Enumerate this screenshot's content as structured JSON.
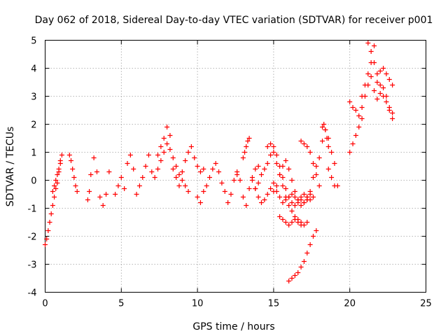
{
  "chart_data": {
    "type": "scatter",
    "title": "Day 062 of 2018, Sidereal Day-to-day VTEC variation (SDTVAR) for receiver p001",
    "xlabel": "GPS time / hours",
    "ylabel": "SDTVAR / TECUs",
    "xlim": [
      0,
      25
    ],
    "ylim": [
      -4,
      5
    ],
    "xticks": [
      0,
      5,
      10,
      15,
      20,
      25
    ],
    "yticks": [
      -4,
      -3,
      -2,
      -1,
      0,
      1,
      2,
      3,
      4,
      5
    ],
    "grid": true,
    "marker": "plus",
    "color": "#ff0000",
    "series": [
      {
        "name": "p001",
        "segments": [
          {
            "x": [
              0.0,
              0.1,
              0.2,
              0.3,
              0.4,
              0.5,
              0.6,
              0.7,
              0.8,
              0.9,
              1.0,
              1.1
            ],
            "y": [
              -2.3,
              -2.1,
              -1.8,
              -1.5,
              -1.2,
              -0.9,
              -0.6,
              -0.3,
              -0.1,
              0.3,
              0.7,
              0.9
            ]
          },
          {
            "x": [
              0.5,
              0.6,
              0.7,
              0.8,
              0.9,
              1.0
            ],
            "y": [
              -0.4,
              -0.2,
              0.0,
              0.2,
              0.4,
              0.6
            ]
          },
          {
            "x": [
              1.6,
              1.7,
              1.8,
              1.9,
              2.0,
              2.1
            ],
            "y": [
              0.9,
              0.7,
              0.4,
              0.1,
              -0.2,
              -0.4
            ]
          },
          {
            "x": [
              2.8,
              2.9,
              3.0,
              3.2,
              3.4,
              3.6,
              3.8,
              4.0,
              4.2
            ],
            "y": [
              -0.7,
              -0.4,
              0.2,
              0.8,
              0.3,
              -0.6,
              -0.9,
              -0.5,
              0.3
            ]
          },
          {
            "x": [
              4.6,
              4.8,
              5.0,
              5.2,
              5.4,
              5.6,
              5.8
            ],
            "y": [
              -0.5,
              -0.2,
              0.1,
              -0.3,
              0.6,
              0.9,
              0.4
            ]
          },
          {
            "x": [
              6.0,
              6.2,
              6.4,
              6.6,
              6.8,
              7.0
            ],
            "y": [
              -0.5,
              -0.2,
              0.1,
              0.5,
              0.9,
              0.3
            ]
          },
          {
            "x": [
              7.2,
              7.4,
              7.6,
              7.8,
              8.0,
              8.2,
              8.4,
              8.6,
              8.8,
              9.0,
              9.2,
              9.4
            ],
            "y": [
              0.1,
              0.4,
              0.7,
              1.0,
              1.3,
              1.1,
              0.8,
              0.5,
              0.2,
              0.0,
              -0.2,
              -0.4
            ]
          },
          {
            "x": [
              7.4,
              7.6,
              7.8,
              8.0,
              8.2
            ],
            "y": [
              0.9,
              1.2,
              1.5,
              1.9,
              1.6
            ]
          },
          {
            "x": [
              8.4,
              8.6,
              8.8,
              9.0,
              9.2,
              9.4,
              9.6,
              9.8,
              10.0,
              10.2,
              10.4
            ],
            "y": [
              0.4,
              0.1,
              -0.2,
              0.3,
              0.7,
              1.0,
              1.2,
              0.8,
              0.5,
              0.3,
              0.4
            ]
          },
          {
            "x": [
              10.0,
              10.2,
              10.4,
              10.6,
              10.8,
              11.0,
              11.2,
              11.4,
              11.6,
              11.8,
              12.0,
              12.2,
              12.4,
              12.6
            ],
            "y": [
              -0.6,
              -0.8,
              -0.4,
              -0.2,
              0.1,
              0.4,
              0.6,
              0.3,
              -0.1,
              -0.4,
              -0.8,
              -0.5,
              0.0,
              0.3
            ]
          },
          {
            "x": [
              12.6,
              12.8,
              13.0,
              13.2,
              13.4,
              13.6,
              13.8,
              14.0
            ],
            "y": [
              0.2,
              0.0,
              -0.6,
              -0.9,
              -0.3,
              0.1,
              0.4,
              0.5
            ]
          },
          {
            "x": [
              13.0,
              13.1,
              13.2,
              13.3,
              13.4
            ],
            "y": [
              0.8,
              1.0,
              1.2,
              1.4,
              1.5
            ]
          },
          {
            "x": [
              13.6,
              13.8,
              14.0,
              14.2,
              14.4,
              14.6,
              14.8,
              15.0,
              15.2,
              15.4,
              15.6,
              15.8,
              16.0,
              16.2,
              16.4,
              16.6,
              16.8,
              17.0,
              17.2,
              17.4
            ],
            "y": [
              0.0,
              -0.3,
              -0.6,
              -0.8,
              -0.7,
              -0.5,
              -0.3,
              -0.1,
              -0.4,
              -0.6,
              -0.8,
              -0.7,
              -0.6,
              -0.5,
              -0.6,
              -0.7,
              -0.6,
              -0.5,
              -0.6,
              -0.7
            ]
          },
          {
            "x": [
              13.8,
              14.0,
              14.2,
              14.4,
              14.6,
              14.8,
              15.0,
              15.2,
              15.4,
              15.6,
              15.8,
              16.0,
              16.2,
              16.4,
              16.6,
              16.8
            ],
            "y": [
              -0.3,
              -0.1,
              0.2,
              0.4,
              0.6,
              0.9,
              1.0,
              0.6,
              0.2,
              -0.2,
              -0.6,
              -0.9,
              -1.1,
              -1.3,
              -1.5,
              -1.6
            ]
          },
          {
            "x": [
              14.6,
              14.8,
              15.0,
              15.2,
              15.4,
              15.6,
              15.8,
              16.0,
              16.2,
              16.4,
              16.6,
              16.8,
              17.0,
              17.2
            ],
            "y": [
              1.2,
              1.3,
              1.2,
              0.9,
              0.5,
              0.1,
              -0.3,
              -0.6,
              -0.8,
              -0.9,
              -0.8,
              -0.7,
              -0.8,
              -0.7
            ]
          },
          {
            "x": [
              15.0,
              15.2,
              15.4,
              15.6,
              15.8,
              16.0,
              16.2,
              16.4,
              16.6,
              16.8,
              17.0,
              17.2,
              17.4,
              17.6
            ],
            "y": [
              -0.4,
              -0.2,
              0.2,
              0.5,
              0.7,
              0.4,
              0.0,
              -0.4,
              -0.7,
              -0.9,
              -0.8,
              -0.6,
              -0.5,
              -0.6
            ]
          },
          {
            "x": [
              15.4,
              15.6,
              15.8,
              16.0,
              16.2,
              16.4,
              16.6,
              16.8,
              17.0,
              17.2
            ],
            "y": [
              -1.3,
              -1.4,
              -1.5,
              -1.6,
              -1.5,
              -1.4,
              -1.4,
              -1.5,
              -1.6,
              -1.5
            ]
          },
          {
            "x": [
              16.0,
              16.2,
              16.4,
              16.6,
              16.8,
              17.0,
              17.2,
              17.4,
              17.6,
              17.8
            ],
            "y": [
              -3.6,
              -3.5,
              -3.4,
              -3.3,
              -3.1,
              -2.9,
              -2.6,
              -2.3,
              -2.0,
              -1.8
            ]
          },
          {
            "x": [
              16.8,
              17.0,
              17.2,
              17.4,
              17.6,
              17.8,
              18.0
            ],
            "y": [
              1.4,
              1.3,
              1.2,
              1.0,
              0.6,
              0.2,
              -0.2
            ]
          },
          {
            "x": [
              17.2,
              17.4,
              17.6,
              17.8,
              18.0,
              18.2,
              18.4,
              18.6,
              18.8,
              19.0
            ],
            "y": [
              -0.7,
              -0.4,
              0.1,
              0.5,
              0.8,
              1.4,
              1.8,
              1.5,
              1.0,
              0.6
            ]
          },
          {
            "x": [
              18.2,
              18.3,
              18.4,
              18.5,
              18.6
            ],
            "y": [
              1.9,
              2.0,
              1.8,
              1.5,
              1.2
            ]
          },
          {
            "x": [
              18.6,
              18.8,
              19.0,
              19.2
            ],
            "y": [
              0.4,
              0.1,
              -0.2,
              -0.2
            ]
          },
          {
            "x": [
              20.0,
              20.2,
              20.4,
              20.6,
              20.8,
              21.0,
              21.2,
              21.4
            ],
            "y": [
              2.8,
              2.6,
              2.5,
              2.3,
              2.6,
              3.0,
              3.4,
              3.7
            ]
          },
          {
            "x": [
              20.0,
              20.2,
              20.4,
              20.6,
              20.8
            ],
            "y": [
              1.0,
              1.3,
              1.6,
              1.9,
              2.2
            ]
          },
          {
            "x": [
              20.8,
              21.0,
              21.2,
              21.4,
              21.6
            ],
            "y": [
              3.0,
              3.4,
              3.8,
              4.2,
              4.8
            ]
          },
          {
            "x": [
              21.2,
              21.4,
              21.6,
              21.8,
              22.0,
              22.2,
              22.4,
              22.6,
              22.8
            ],
            "y": [
              4.9,
              4.6,
              4.2,
              3.8,
              3.4,
              3.0,
              2.8,
              2.5,
              2.2
            ]
          },
          {
            "x": [
              21.6,
              21.8,
              22.0,
              22.2,
              22.4,
              22.6,
              22.8
            ],
            "y": [
              3.2,
              3.5,
              3.9,
              4.0,
              3.8,
              3.6,
              3.4
            ]
          },
          {
            "x": [
              21.8,
              22.0,
              22.2,
              22.4,
              22.6,
              22.8
            ],
            "y": [
              2.9,
              3.1,
              3.3,
              3.0,
              2.6,
              2.4
            ]
          }
        ]
      }
    ]
  }
}
